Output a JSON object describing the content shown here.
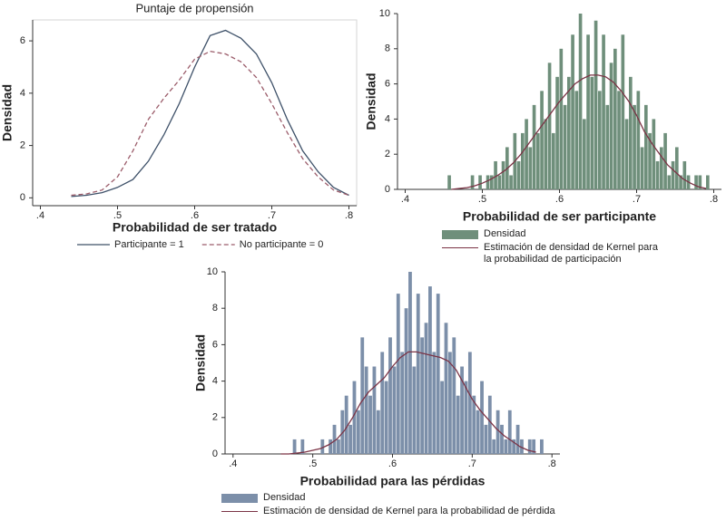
{
  "chart_data": [
    {
      "type": "line",
      "title": "Puntaje de propensión",
      "x_label": "Probabilidad de ser tratado",
      "y_label": "Densidad",
      "xlim": [
        0.39,
        0.81
      ],
      "ylim": [
        -0.3,
        6.8
      ],
      "xticks": [
        {
          "value": 0.4,
          "label": ".4"
        },
        {
          "value": 0.5,
          "label": ".5"
        },
        {
          "value": 0.6,
          "label": ".6"
        },
        {
          "value": 0.7,
          "label": ".7"
        },
        {
          "value": 0.8,
          "label": ".8"
        }
      ],
      "yticks": [
        0,
        2,
        4,
        6
      ],
      "x": [
        0.44,
        0.46,
        0.48,
        0.5,
        0.52,
        0.54,
        0.56,
        0.58,
        0.6,
        0.62,
        0.64,
        0.66,
        0.68,
        0.7,
        0.72,
        0.74,
        0.76,
        0.78,
        0.8
      ],
      "series": [
        {
          "name": "Participante = 1",
          "color": "#3d5068",
          "dashed": false,
          "values": [
            0.05,
            0.1,
            0.2,
            0.4,
            0.7,
            1.4,
            2.4,
            3.6,
            5.0,
            6.2,
            6.4,
            6.1,
            5.5,
            4.4,
            3.0,
            1.8,
            1.0,
            0.4,
            0.1
          ]
        },
        {
          "name": "No participante = 0",
          "color": "#9b5c6a",
          "dashed": true,
          "values": [
            0.1,
            0.15,
            0.3,
            0.8,
            1.8,
            3.0,
            3.8,
            4.5,
            5.3,
            5.6,
            5.5,
            5.2,
            4.6,
            3.6,
            2.5,
            1.5,
            0.8,
            0.3,
            0.1
          ]
        }
      ]
    },
    {
      "type": "histogram",
      "x_label": "Probabilidad de ser participante",
      "y_label": "Densidad",
      "xlim": [
        0.39,
        0.81
      ],
      "ylim": [
        0,
        10
      ],
      "xticks": [
        {
          "value": 0.4,
          "label": ".4"
        },
        {
          "value": 0.5,
          "label": ".5"
        },
        {
          "value": 0.6,
          "label": ".6"
        },
        {
          "value": 0.7,
          "label": ".7"
        },
        {
          "value": 0.8,
          "label": ".8"
        }
      ],
      "yticks": [
        0,
        2,
        4,
        6,
        8,
        10
      ],
      "bins": [
        0.45,
        0.455,
        0.46,
        0.465,
        0.47,
        0.475,
        0.48,
        0.485,
        0.49,
        0.495,
        0.5,
        0.505,
        0.51,
        0.515,
        0.52,
        0.525,
        0.53,
        0.535,
        0.54,
        0.545,
        0.55,
        0.555,
        0.56,
        0.565,
        0.57,
        0.575,
        0.58,
        0.585,
        0.59,
        0.595,
        0.6,
        0.605,
        0.61,
        0.615,
        0.62,
        0.625,
        0.63,
        0.635,
        0.64,
        0.645,
        0.65,
        0.655,
        0.66,
        0.665,
        0.67,
        0.675,
        0.68,
        0.685,
        0.69,
        0.695,
        0.7,
        0.705,
        0.71,
        0.715,
        0.72,
        0.725,
        0.73,
        0.735,
        0.74,
        0.745,
        0.75,
        0.755,
        0.76,
        0.765,
        0.77,
        0.775,
        0.78,
        0.785,
        0.79,
        0.795,
        0.8
      ],
      "series": [
        {
          "name": "Densidad",
          "color": "#6f8f7b",
          "values": [
            0,
            0.8,
            0,
            0,
            0,
            0,
            0,
            0.8,
            0,
            0.8,
            0,
            0.8,
            0.8,
            1.6,
            0.8,
            1.6,
            2.4,
            0.8,
            3.2,
            1.6,
            3.2,
            4.0,
            2.4,
            4.8,
            3.2,
            5.6,
            4.0,
            7.2,
            3.2,
            6.4,
            8.0,
            4.8,
            6.4,
            8.8,
            5.6,
            10.0,
            4.0,
            8.8,
            6.4,
            9.6,
            5.6,
            8.8,
            4.8,
            7.2,
            8.0,
            5.6,
            8.8,
            4.0,
            6.4,
            4.8,
            5.6,
            2.4,
            4.8,
            3.2,
            4.0,
            1.6,
            2.4,
            3.2,
            0.8,
            1.6,
            2.4,
            0.8,
            1.6,
            0.8,
            0,
            0.8,
            0.8,
            0,
            0.8,
            0
          ]
        },
        {
          "name": "Estimación de densidad de Kernel para la probabilidad de participación",
          "color": "#7b3345",
          "type": "line",
          "x": [
            0.46,
            0.47,
            0.48,
            0.49,
            0.5,
            0.51,
            0.52,
            0.53,
            0.54,
            0.55,
            0.56,
            0.57,
            0.58,
            0.59,
            0.6,
            0.61,
            0.62,
            0.63,
            0.64,
            0.65,
            0.66,
            0.67,
            0.68,
            0.69,
            0.7,
            0.71,
            0.72,
            0.73,
            0.74,
            0.75,
            0.76,
            0.77,
            0.78,
            0.79
          ],
          "values": [
            0,
            0.05,
            0.1,
            0.2,
            0.35,
            0.55,
            0.8,
            1.1,
            1.5,
            2.0,
            2.6,
            3.2,
            3.8,
            4.4,
            5.0,
            5.5,
            6.0,
            6.3,
            6.5,
            6.5,
            6.4,
            6.1,
            5.6,
            5.0,
            4.2,
            3.3,
            2.6,
            2.0,
            1.4,
            1.0,
            0.6,
            0.35,
            0.15,
            0.05
          ]
        }
      ]
    },
    {
      "type": "histogram",
      "x_label": "Probabilidad para las pérdidas",
      "y_label": "Densidad",
      "xlim": [
        0.39,
        0.81
      ],
      "ylim": [
        0,
        10
      ],
      "xticks": [
        {
          "value": 0.4,
          "label": ".4"
        },
        {
          "value": 0.5,
          "label": ".5"
        },
        {
          "value": 0.6,
          "label": ".6"
        },
        {
          "value": 0.7,
          "label": ".7"
        },
        {
          "value": 0.8,
          "label": ".8"
        }
      ],
      "yticks": [
        0,
        2,
        4,
        6,
        8,
        10
      ],
      "bins": [
        0.45,
        0.455,
        0.46,
        0.465,
        0.47,
        0.475,
        0.48,
        0.485,
        0.49,
        0.495,
        0.5,
        0.505,
        0.51,
        0.515,
        0.52,
        0.525,
        0.53,
        0.535,
        0.54,
        0.545,
        0.55,
        0.555,
        0.56,
        0.565,
        0.57,
        0.575,
        0.58,
        0.585,
        0.59,
        0.595,
        0.6,
        0.605,
        0.61,
        0.615,
        0.62,
        0.625,
        0.63,
        0.635,
        0.64,
        0.645,
        0.65,
        0.655,
        0.66,
        0.665,
        0.67,
        0.675,
        0.68,
        0.685,
        0.69,
        0.695,
        0.7,
        0.705,
        0.71,
        0.715,
        0.72,
        0.725,
        0.73,
        0.735,
        0.74,
        0.745,
        0.75,
        0.755,
        0.76,
        0.765,
        0.77,
        0.775,
        0.78,
        0.785,
        0.79,
        0.795,
        0.8
      ],
      "series": [
        {
          "name": "Densidad",
          "color": "#7c8fa9",
          "values": [
            0,
            0,
            0,
            0,
            0,
            0.8,
            0,
            0.8,
            0,
            0,
            0,
            0,
            0.8,
            0,
            0.8,
            1.6,
            0.8,
            2.4,
            3.2,
            1.6,
            4.0,
            2.4,
            6.4,
            4.8,
            3.2,
            4.8,
            2.4,
            5.6,
            4.0,
            6.4,
            4.8,
            8.8,
            5.6,
            8.0,
            10.0,
            4.8,
            8.8,
            6.4,
            7.2,
            9.2,
            5.6,
            8.8,
            4.0,
            7.2,
            5.6,
            6.4,
            3.2,
            4.8,
            4.0,
            5.6,
            3.2,
            2.4,
            4.0,
            1.6,
            3.2,
            0.8,
            2.4,
            1.6,
            0.8,
            2.4,
            0.8,
            1.6,
            0.8,
            0,
            0.8,
            0.8,
            0,
            0.8,
            0,
            0
          ]
        },
        {
          "name": "Estimación de densidad de Kernel para la probabilidad de pérdida",
          "color": "#7b3345",
          "type": "line",
          "x": [
            0.46,
            0.47,
            0.48,
            0.49,
            0.5,
            0.51,
            0.52,
            0.53,
            0.54,
            0.55,
            0.56,
            0.57,
            0.58,
            0.59,
            0.6,
            0.61,
            0.62,
            0.63,
            0.64,
            0.65,
            0.66,
            0.67,
            0.68,
            0.69,
            0.7,
            0.71,
            0.72,
            0.73,
            0.74,
            0.75,
            0.76,
            0.77,
            0.78
          ],
          "values": [
            0,
            0,
            0.05,
            0.1,
            0.2,
            0.3,
            0.5,
            0.8,
            1.3,
            2.0,
            2.8,
            3.4,
            3.8,
            4.2,
            4.8,
            5.3,
            5.6,
            5.6,
            5.5,
            5.4,
            5.3,
            5.1,
            4.6,
            3.8,
            3.0,
            2.4,
            1.9,
            1.4,
            1.0,
            0.7,
            0.4,
            0.2,
            0.1
          ]
        }
      ]
    }
  ]
}
